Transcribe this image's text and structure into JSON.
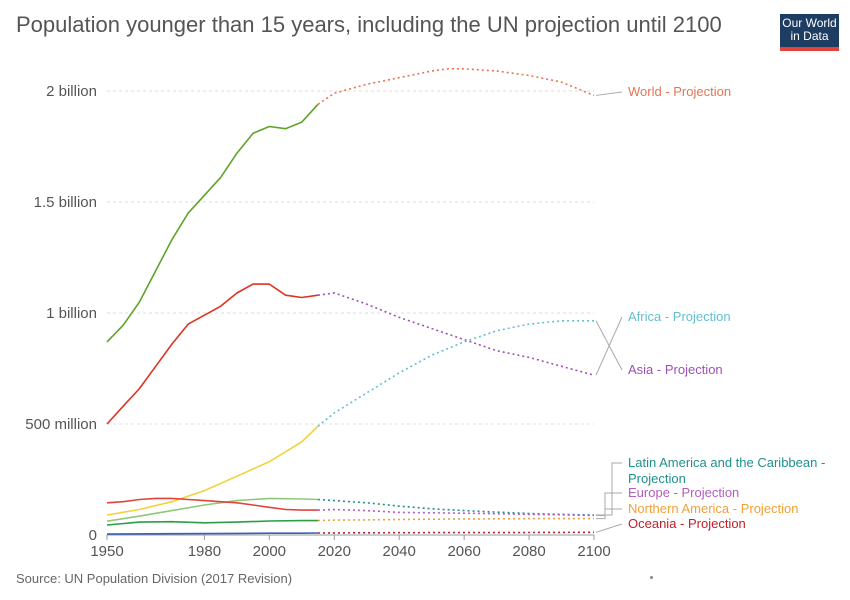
{
  "header": {
    "title": "Population younger than 15 years, including the UN projection until 2100",
    "logo_line1": "Our World",
    "logo_line2": "in Data"
  },
  "footer": {
    "source": "Source: UN Population Division (2017 Revision)"
  },
  "chart_data": {
    "type": "line",
    "title": "Population younger than 15 years, including the UN projection until 2100",
    "xlim": [
      1950,
      2100
    ],
    "ylim": [
      0,
      2000000000
    ],
    "x_ticks": [
      {
        "value": 1950,
        "label": "1950"
      },
      {
        "value": 1980,
        "label": "1980"
      },
      {
        "value": 2000,
        "label": "2000"
      },
      {
        "value": 2020,
        "label": "2020"
      },
      {
        "value": 2040,
        "label": "2040"
      },
      {
        "value": 2060,
        "label": "2060"
      },
      {
        "value": 2080,
        "label": "2080"
      },
      {
        "value": 2100,
        "label": "2100"
      }
    ],
    "y_ticks": [
      {
        "value": 0,
        "label": "0"
      },
      {
        "value": 500000000,
        "label": "500 million"
      },
      {
        "value": 1000000000,
        "label": "1 billion"
      },
      {
        "value": 1500000000,
        "label": "1.5 billion"
      },
      {
        "value": 2000000000,
        "label": "2 billion"
      }
    ],
    "grid": "horizontal dashed",
    "historical_end": 2015,
    "series": [
      {
        "name": "World - Projection",
        "color": "#5fa327",
        "projection_color": "#e8744f",
        "points": [
          [
            1950,
            870000000
          ],
          [
            1955,
            945000000
          ],
          [
            1960,
            1050000000
          ],
          [
            1965,
            1190000000
          ],
          [
            1970,
            1330000000
          ],
          [
            1975,
            1450000000
          ],
          [
            1980,
            1530000000
          ],
          [
            1985,
            1610000000
          ],
          [
            1990,
            1720000000
          ],
          [
            1995,
            1810000000
          ],
          [
            2000,
            1840000000
          ],
          [
            2005,
            1830000000
          ],
          [
            2010,
            1860000000
          ],
          [
            2015,
            1940000000
          ],
          [
            2020,
            1990000000
          ],
          [
            2030,
            2030000000
          ],
          [
            2040,
            2060000000
          ],
          [
            2050,
            2090000000
          ],
          [
            2055,
            2100000000
          ],
          [
            2060,
            2100000000
          ],
          [
            2070,
            2090000000
          ],
          [
            2080,
            2070000000
          ],
          [
            2090,
            2040000000
          ],
          [
            2100,
            1980000000
          ]
        ]
      },
      {
        "name": "Asia - Projection",
        "color": "#dd3323",
        "projection_color": "#a04fb8",
        "points": [
          [
            1950,
            500000000
          ],
          [
            1955,
            580000000
          ],
          [
            1960,
            660000000
          ],
          [
            1965,
            760000000
          ],
          [
            1970,
            860000000
          ],
          [
            1975,
            950000000
          ],
          [
            1980,
            990000000
          ],
          [
            1985,
            1030000000
          ],
          [
            1990,
            1090000000
          ],
          [
            1995,
            1130000000
          ],
          [
            2000,
            1130000000
          ],
          [
            2005,
            1080000000
          ],
          [
            2010,
            1070000000
          ],
          [
            2015,
            1080000000
          ],
          [
            2020,
            1090000000
          ],
          [
            2030,
            1040000000
          ],
          [
            2040,
            980000000
          ],
          [
            2050,
            930000000
          ],
          [
            2060,
            880000000
          ],
          [
            2070,
            830000000
          ],
          [
            2080,
            800000000
          ],
          [
            2090,
            760000000
          ],
          [
            2100,
            720000000
          ]
        ]
      },
      {
        "name": "Africa - Projection",
        "color": "#f2d23a",
        "projection_color": "#66bed0",
        "points": [
          [
            1950,
            90000000
          ],
          [
            1960,
            115000000
          ],
          [
            1970,
            150000000
          ],
          [
            1980,
            200000000
          ],
          [
            1990,
            265000000
          ],
          [
            2000,
            330000000
          ],
          [
            2010,
            420000000
          ],
          [
            2015,
            490000000
          ],
          [
            2020,
            550000000
          ],
          [
            2030,
            640000000
          ],
          [
            2040,
            730000000
          ],
          [
            2050,
            810000000
          ],
          [
            2060,
            870000000
          ],
          [
            2070,
            920000000
          ],
          [
            2080,
            950000000
          ],
          [
            2090,
            965000000
          ],
          [
            2100,
            965000000
          ]
        ]
      },
      {
        "name": "Latin America and the Caribbean - Projection",
        "color": "#8ec97a",
        "projection_color": "#1f908c",
        "points": [
          [
            1950,
            62000000
          ],
          [
            1960,
            85000000
          ],
          [
            1970,
            110000000
          ],
          [
            1980,
            135000000
          ],
          [
            1990,
            155000000
          ],
          [
            2000,
            165000000
          ],
          [
            2010,
            162000000
          ],
          [
            2015,
            160000000
          ],
          [
            2020,
            155000000
          ],
          [
            2030,
            145000000
          ],
          [
            2040,
            130000000
          ],
          [
            2050,
            118000000
          ],
          [
            2060,
            110000000
          ],
          [
            2070,
            103000000
          ],
          [
            2080,
            97000000
          ],
          [
            2090,
            93000000
          ],
          [
            2100,
            90000000
          ]
        ]
      },
      {
        "name": "Europe - Projection",
        "color": "#e0453a",
        "projection_color": "#b35dc1",
        "points": [
          [
            1950,
            145000000
          ],
          [
            1955,
            150000000
          ],
          [
            1960,
            160000000
          ],
          [
            1965,
            165000000
          ],
          [
            1970,
            165000000
          ],
          [
            1975,
            160000000
          ],
          [
            1980,
            155000000
          ],
          [
            1985,
            150000000
          ],
          [
            1990,
            145000000
          ],
          [
            1995,
            135000000
          ],
          [
            2000,
            125000000
          ],
          [
            2005,
            115000000
          ],
          [
            2010,
            112000000
          ],
          [
            2015,
            112000000
          ],
          [
            2020,
            115000000
          ],
          [
            2030,
            110000000
          ],
          [
            2040,
            102000000
          ],
          [
            2050,
            100000000
          ],
          [
            2060,
            98000000
          ],
          [
            2070,
            96000000
          ],
          [
            2080,
            93000000
          ],
          [
            2090,
            91000000
          ],
          [
            2100,
            88000000
          ]
        ]
      },
      {
        "name": "Northern America - Projection",
        "color": "#2a9e48",
        "projection_color": "#f0a23a",
        "points": [
          [
            1950,
            45000000
          ],
          [
            1960,
            58000000
          ],
          [
            1970,
            60000000
          ],
          [
            1980,
            55000000
          ],
          [
            1990,
            58000000
          ],
          [
            2000,
            63000000
          ],
          [
            2010,
            65000000
          ],
          [
            2015,
            65000000
          ],
          [
            2020,
            67000000
          ],
          [
            2030,
            68000000
          ],
          [
            2040,
            70000000
          ],
          [
            2050,
            71000000
          ],
          [
            2060,
            72000000
          ],
          [
            2070,
            73000000
          ],
          [
            2080,
            74000000
          ],
          [
            2090,
            74000000
          ],
          [
            2100,
            74000000
          ]
        ]
      },
      {
        "name": "Oceania - Projection",
        "color": "#3a5fc0",
        "projection_color": "#c0202e",
        "points": [
          [
            1950,
            4000000
          ],
          [
            1970,
            6000000
          ],
          [
            1990,
            7000000
          ],
          [
            2000,
            8000000
          ],
          [
            2010,
            8000000
          ],
          [
            2015,
            9000000
          ],
          [
            2030,
            10000000
          ],
          [
            2050,
            11000000
          ],
          [
            2070,
            11000000
          ],
          [
            2100,
            12000000
          ]
        ]
      }
    ],
    "labels": [
      {
        "text": "World - Projection",
        "color": "#e8744f",
        "lines": [
          "World - Projection"
        ]
      },
      {
        "text": "Africa - Projection",
        "color": "#66bed0",
        "lines": [
          "Africa - Projection"
        ]
      },
      {
        "text": "Asia - Projection",
        "color": "#a04fb8",
        "lines": [
          "Asia - Projection"
        ]
      },
      {
        "text": "Latin America and the Caribbean - Projection",
        "color": "#1f908c",
        "lines": [
          "Latin America and the Caribbean -",
          "Projection"
        ]
      },
      {
        "text": "Europe - Projection",
        "color": "#b35dc1",
        "lines": [
          "Europe - Projection"
        ]
      },
      {
        "text": "Northern America - Projection",
        "color": "#f0a23a",
        "lines": [
          "Northern America - Projection"
        ]
      },
      {
        "text": "Oceania - Projection",
        "color": "#c0202e",
        "lines": [
          "Oceania - Projection"
        ]
      }
    ]
  }
}
